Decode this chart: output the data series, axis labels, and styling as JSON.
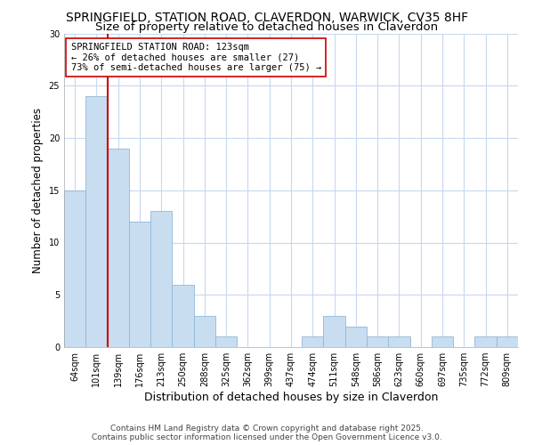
{
  "title1": "SPRINGFIELD, STATION ROAD, CLAVERDON, WARWICK, CV35 8HF",
  "title2": "Size of property relative to detached houses in Claverdon",
  "xlabel": "Distribution of detached houses by size in Claverdon",
  "ylabel": "Number of detached properties",
  "bin_labels": [
    "64sqm",
    "101sqm",
    "139sqm",
    "176sqm",
    "213sqm",
    "250sqm",
    "288sqm",
    "325sqm",
    "362sqm",
    "399sqm",
    "437sqm",
    "474sqm",
    "511sqm",
    "548sqm",
    "586sqm",
    "623sqm",
    "660sqm",
    "697sqm",
    "735sqm",
    "772sqm",
    "809sqm"
  ],
  "bar_values": [
    15,
    24,
    19,
    12,
    13,
    6,
    3,
    1,
    0,
    0,
    0,
    1,
    3,
    2,
    1,
    1,
    0,
    1,
    0,
    1,
    1
  ],
  "bar_color": "#c8ddf0",
  "bar_edge_color": "#90b8d8",
  "vline_color": "#cc0000",
  "annotation_text": "SPRINGFIELD STATION ROAD: 123sqm\n← 26% of detached houses are smaller (27)\n73% of semi-detached houses are larger (75) →",
  "annotation_box_color": "#ffffff",
  "annotation_box_edge": "#cc0000",
  "ylim": [
    0,
    30
  ],
  "yticks": [
    0,
    5,
    10,
    15,
    20,
    25,
    30
  ],
  "fig_bg": "#ffffff",
  "plot_bg": "#ffffff",
  "grid_color": "#c8d8ee",
  "footer_text": "Contains HM Land Registry data © Crown copyright and database right 2025.\nContains public sector information licensed under the Open Government Licence v3.0.",
  "title1_fontsize": 10,
  "title2_fontsize": 9.5,
  "xlabel_fontsize": 9,
  "ylabel_fontsize": 8.5,
  "tick_fontsize": 7,
  "annotation_fontsize": 7.5,
  "footer_fontsize": 6.5
}
